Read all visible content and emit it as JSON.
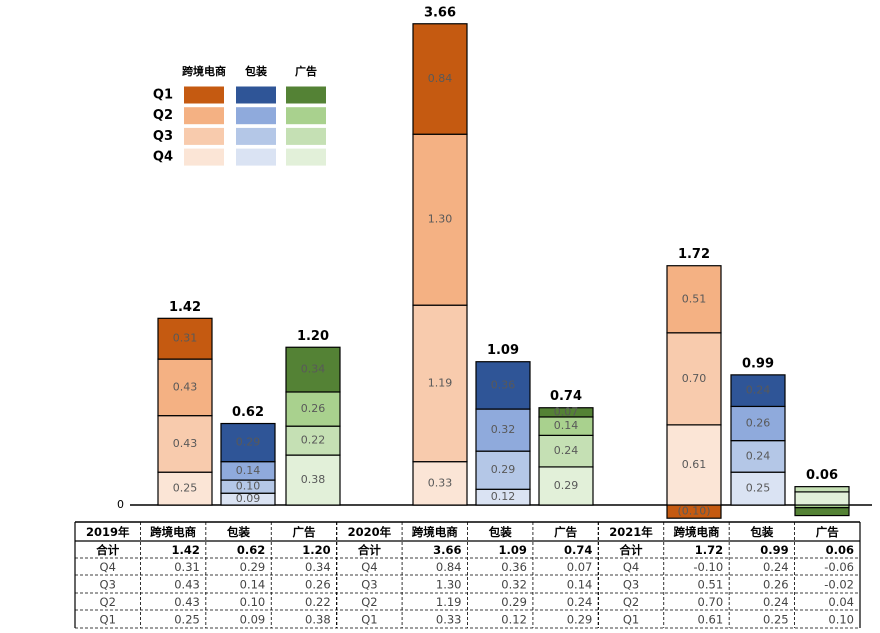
{
  "chart_data": {
    "type": "stacked-bar",
    "ylim": [
      -0.1,
      3.7
    ],
    "yticks": [
      0
    ],
    "legend": {
      "columns": [
        "跨境电商",
        "包装",
        "广告"
      ],
      "rows": [
        "Q1",
        "Q2",
        "Q3",
        "Q4"
      ],
      "colors": [
        [
          "#c55a11",
          "#2f5597",
          "#548235"
        ],
        [
          "#f4b183",
          "#8faadc",
          "#a9d18e"
        ],
        [
          "#f8cbad",
          "#b4c7e7",
          "#c5e0b4"
        ],
        [
          "#fbe5d6",
          "#dae3f3",
          "#e2f0d9"
        ]
      ]
    },
    "series": [
      {
        "name": "Q1",
        "colors": [
          "#fbe5d6",
          "#dae3f3",
          "#e2f0d9"
        ],
        "values": [
          0.25,
          0.09,
          0.38,
          0.33,
          0.12,
          0.29,
          0.61,
          0.25,
          0.1
        ],
        "value_labels": [
          "0.25",
          "0.09",
          "0.38",
          "0.33",
          "0.12",
          "0.29",
          "0.61",
          "0.25",
          null
        ]
      },
      {
        "name": "Q2",
        "colors": [
          "#f8cbad",
          "#b4c7e7",
          "#c5e0b4"
        ],
        "values": [
          0.43,
          0.1,
          0.22,
          1.19,
          0.29,
          0.24,
          0.7,
          0.24,
          0.04
        ],
        "value_labels": [
          "0.43",
          "0.10",
          "0.22",
          "1.19",
          "0.29",
          "0.24",
          "0.70",
          "0.24",
          null
        ]
      },
      {
        "name": "Q3",
        "colors": [
          "#f4b183",
          "#8faadc",
          "#a9d18e"
        ],
        "values": [
          0.43,
          0.14,
          0.26,
          1.3,
          0.32,
          0.14,
          0.51,
          0.26,
          -0.02
        ],
        "value_labels": [
          "0.43",
          "0.14",
          "0.26",
          "1.30",
          "0.32",
          "0.14",
          "0.51",
          "0.26",
          null
        ]
      },
      {
        "name": "Q4",
        "colors": [
          "#c55a11",
          "#2f5597",
          "#548235"
        ],
        "values": [
          0.31,
          0.29,
          0.34,
          0.84,
          0.36,
          0.07,
          -0.1,
          0.24,
          -0.06
        ],
        "value_labels": [
          "0.31",
          "0.29",
          "0.34",
          "0.84",
          "0.36",
          "0.07",
          "(0.10)",
          "0.24",
          null
        ]
      }
    ],
    "totals": {
      "values": [
        1.42,
        0.62,
        1.2,
        3.66,
        1.09,
        0.74,
        1.72,
        0.99,
        0.06
      ],
      "value_labels": [
        "1.42",
        "0.62",
        "1.20",
        "3.66",
        "1.09",
        "0.74",
        "1.72",
        "0.99",
        "0.06"
      ]
    }
  },
  "table": {
    "header": [
      "2019年",
      "跨境电商",
      "包装",
      "广告",
      "2020年",
      "跨境电商",
      "包装",
      "广告",
      "2021年",
      "跨境电商",
      "包装",
      "广告"
    ],
    "rows": [
      [
        "合计",
        "1.42",
        "0.62",
        "1.20",
        "合计",
        "3.66",
        "1.09",
        "0.74",
        "合计",
        "1.72",
        "0.99",
        "0.06"
      ],
      [
        "Q4",
        "0.31",
        "0.29",
        "0.34",
        "Q4",
        "0.84",
        "0.36",
        "0.07",
        "Q4",
        "-0.10",
        "0.24",
        "-0.06"
      ],
      [
        "Q3",
        "0.43",
        "0.14",
        "0.26",
        "Q3",
        "1.30",
        "0.32",
        "0.14",
        "Q3",
        "0.51",
        "0.26",
        "-0.02"
      ],
      [
        "Q2",
        "0.43",
        "0.10",
        "0.22",
        "Q2",
        "1.19",
        "0.29",
        "0.24",
        "Q2",
        "0.70",
        "0.24",
        "0.04"
      ],
      [
        "Q1",
        "0.25",
        "0.09",
        "0.38",
        "Q1",
        "0.33",
        "0.12",
        "0.29",
        "Q1",
        "0.61",
        "0.25",
        "0.10"
      ]
    ]
  }
}
